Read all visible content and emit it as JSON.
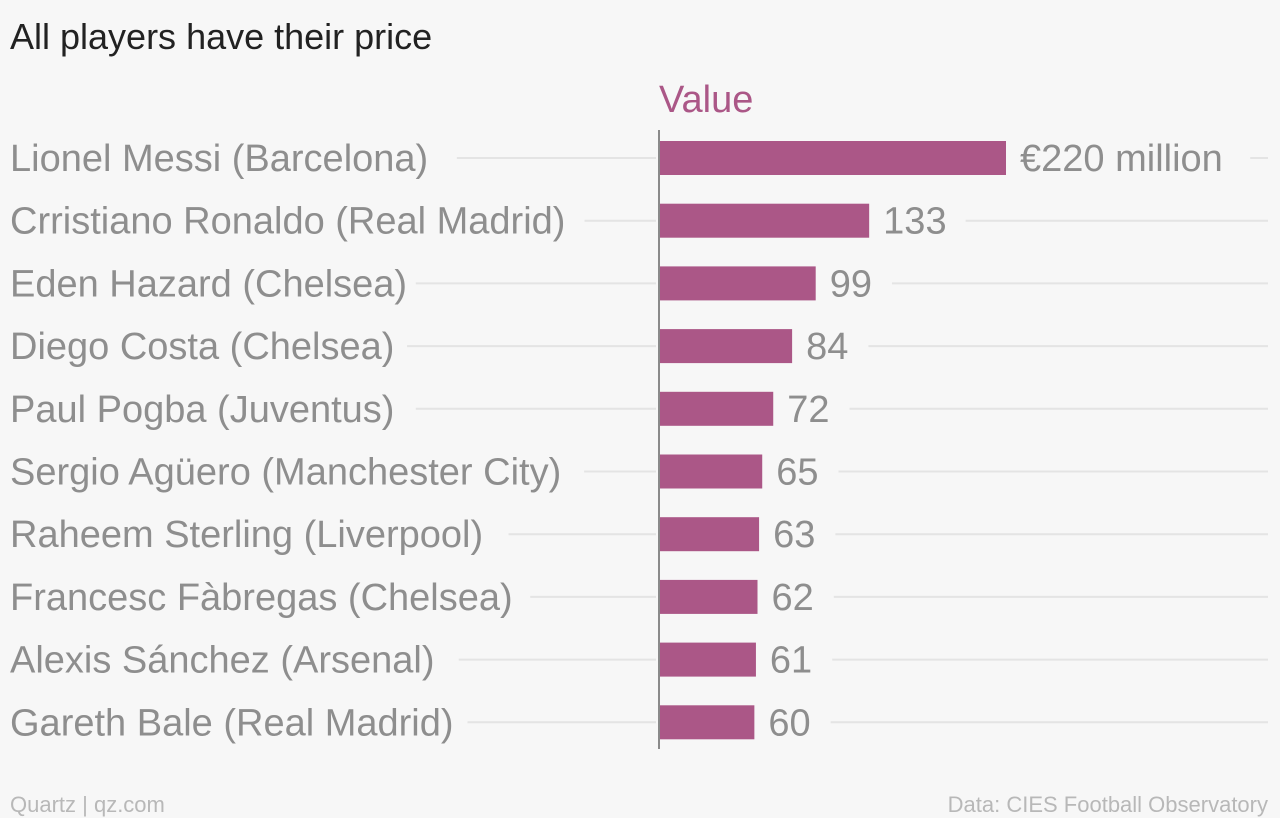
{
  "chart_data": {
    "type": "bar",
    "orientation": "horizontal",
    "title": "All players have their price",
    "series": [
      {
        "name": "Value",
        "values": [
          220,
          133,
          99,
          84,
          72,
          65,
          63,
          62,
          61,
          60
        ],
        "value_labels": [
          "€220 million",
          "133",
          "99",
          "84",
          "72",
          "65",
          "63",
          "62",
          "61",
          "60"
        ]
      }
    ],
    "categories": [
      "Lionel Messi (Barcelona)",
      "Crristiano Ronaldo (Real Madrid)",
      "Eden Hazard (Chelsea)",
      "Diego Costa (Chelsea)",
      "Paul Pogba (Juventus)",
      "Sergio Agüero (Manchester City)",
      "Raheem Sterling (Liverpool)",
      "Francesc Fàbregas (Chelsea)",
      "Alexis Sánchez (Arsenal)",
      "Gareth Bale (Real Madrid)"
    ],
    "xlim": [
      0,
      220
    ],
    "grid": true,
    "colors": {
      "bar": "#ab5787",
      "series_label": "#ab5787"
    }
  },
  "footer": {
    "source_left": "Quartz | qz.com",
    "source_right": "Data: CIES Football Observatory"
  }
}
